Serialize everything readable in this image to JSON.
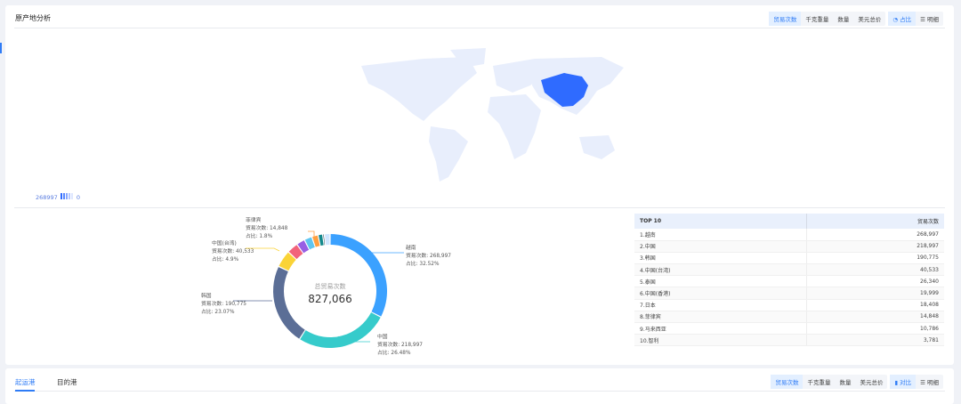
{
  "origin": {
    "title": "原产地分析",
    "metric_buttons": [
      "贸易次数",
      "千克重量",
      "数量",
      "美元总价"
    ],
    "active_metric": 0,
    "view_buttons": [
      {
        "icon": "pie-icon",
        "label": "占比"
      },
      {
        "icon": "list-icon",
        "label": "明细"
      }
    ],
    "map": {
      "highlight": "中国",
      "highlight_color": "#2f6bff",
      "base_color": "#e8eefc",
      "legend_max": "268997",
      "legend_min": "0"
    },
    "donut": {
      "center_label": "总贸易次数",
      "total": "827,066",
      "total_value": 827066,
      "value_prefix": "贸易次数: ",
      "share_prefix": "占比: ",
      "labels": [
        {
          "name": "越南",
          "value": "268,997",
          "share": "32.52%"
        },
        {
          "name": "中国",
          "value": "218,997",
          "share": "26.48%"
        },
        {
          "name": "韩国",
          "value": "190,775",
          "share": "23.07%"
        },
        {
          "name": "中国(台湾)",
          "value": "40,533",
          "share": "4.9%"
        },
        {
          "name": "菲律宾",
          "value": "14,848",
          "share": "1.8%"
        }
      ]
    },
    "table": {
      "headers": [
        "TOP 10",
        "贸易次数"
      ],
      "rows": [
        {
          "name": "1.越南",
          "value": "268,997",
          "num": 268997,
          "color": "#3ba1ff"
        },
        {
          "name": "2.中国",
          "value": "218,997",
          "num": 218997,
          "color": "#36cbcb"
        },
        {
          "name": "3.韩国",
          "value": "190,775",
          "num": 190775,
          "color": "#5b6e96"
        },
        {
          "name": "4.中国(台湾)",
          "value": "40,533",
          "num": 40533,
          "color": "#fad337"
        },
        {
          "name": "5.泰国",
          "value": "26,340",
          "num": 26340,
          "color": "#f2637b"
        },
        {
          "name": "6.中国(香港)",
          "value": "19,999",
          "num": 19999,
          "color": "#975fe4"
        },
        {
          "name": "7.日本",
          "value": "18,408",
          "num": 18408,
          "color": "#5ec5f0"
        },
        {
          "name": "8.菲律宾",
          "value": "14,848",
          "num": 14848,
          "color": "#ff9f40"
        },
        {
          "name": "9.马来西亚",
          "value": "10,786",
          "num": 10786,
          "color": "#13898c"
        },
        {
          "name": "10.智利",
          "value": "3,781",
          "num": 3781,
          "color": "#2f4554"
        }
      ],
      "other_color": "#cfe6ff"
    }
  },
  "ports": {
    "tabs": [
      "起运港",
      "目的港"
    ],
    "active_tab": 0,
    "metric_buttons": [
      "贸易次数",
      "千克重量",
      "数量",
      "美元总价"
    ],
    "view_buttons": [
      {
        "icon": "bar-chart-icon",
        "label": "对比"
      },
      {
        "icon": "list-icon",
        "label": "明细"
      }
    ]
  }
}
